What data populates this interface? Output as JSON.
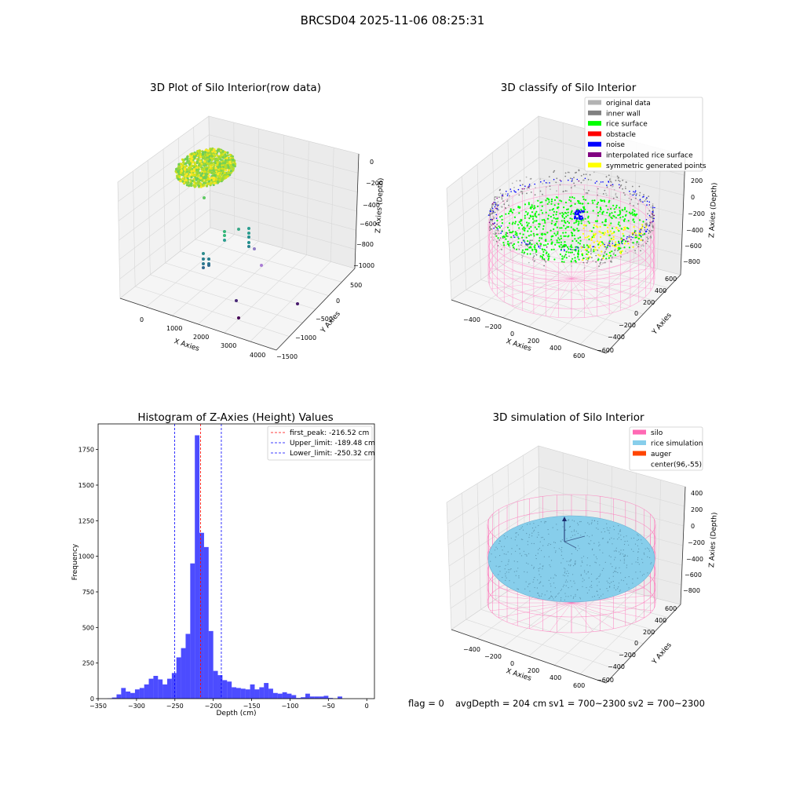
{
  "figure": {
    "suptitle": "BRCSD04 2025-11-06 08:25:31",
    "footer": {
      "flag": "flag = 0",
      "avg_depth": "avgDepth = 204 cm",
      "sv1": "sv1 = 700~2300",
      "sv2": "sv2 = 700~2300"
    }
  },
  "panels": {
    "raw": {
      "title": "3D Plot of Silo Interior(row data)",
      "xlabel": "X Axies",
      "ylabel": "Y Axies",
      "zlabel": "Z Axies (Depth)",
      "xticks": [
        "0",
        "1000",
        "2000",
        "3000",
        "4000"
      ],
      "yticks": [
        "500",
        "0",
        "−500",
        "−1000",
        "−1500"
      ],
      "zticks": [
        "0",
        "−200",
        "−400",
        "−600",
        "−800",
        "−1000"
      ]
    },
    "classify": {
      "title": "3D classify of Silo Interior",
      "xlabel": "X Axies",
      "ylabel": "Y Axies",
      "zlabel": "Z Axies (Depth)",
      "xticks": [
        "−400",
        "−200",
        "0",
        "200",
        "400",
        "600"
      ],
      "yticks": [
        "600",
        "400",
        "200",
        "0",
        "−200",
        "−400",
        "−600"
      ],
      "zticks": [
        "200",
        "0",
        "−200",
        "−400",
        "−600",
        "−800"
      ],
      "legend": [
        {
          "label": "original data",
          "color": "#b3b3b3"
        },
        {
          "label": "inner wall",
          "color": "#808080"
        },
        {
          "label": "rice surface",
          "color": "#00ff00"
        },
        {
          "label": "obstacle",
          "color": "#ff0000"
        },
        {
          "label": "noise",
          "color": "#0000ff"
        },
        {
          "label": "interpolated rice surface",
          "color": "#800080"
        },
        {
          "label": "symmetric generated points",
          "color": "#ffff00"
        }
      ]
    },
    "simulation": {
      "title": "3D simulation of Silo Interior",
      "xlabel": "X Axies",
      "ylabel": "Y Axies",
      "zlabel": "Z Axies (Depth)",
      "xticks": [
        "−400",
        "−200",
        "0",
        "200",
        "400",
        "600"
      ],
      "yticks": [
        "600",
        "400",
        "200",
        "0",
        "−200",
        "−400",
        "−600"
      ],
      "zticks": [
        "400",
        "200",
        "0",
        "−200",
        "−400",
        "−600",
        "−800"
      ],
      "legend": [
        {
          "label": "silo",
          "color": "#ff69b4"
        },
        {
          "label": "rice simulation",
          "color": "#87ceeb"
        },
        {
          "label": "auger",
          "color": "#ff4500"
        },
        {
          "label": "center(96,-55)",
          "color": "none"
        }
      ]
    }
  },
  "chart_data": [
    {
      "type": "scatter",
      "panel": "raw",
      "title": "3D Plot of Silo Interior(row data)",
      "description_colormap": "viridis",
      "xlim": [
        -600,
        4400
      ],
      "ylim": [
        -1500,
        700
      ],
      "zlim": [
        -1000,
        50
      ]
    },
    {
      "type": "scatter",
      "panel": "classify",
      "title": "3D classify of Silo Interior",
      "xlim": [
        -500,
        700
      ],
      "ylim": [
        -700,
        700
      ],
      "zlim": [
        -900,
        300
      ]
    },
    {
      "type": "bar",
      "panel": "histogram",
      "title": "Histogram of Z-Axies (Height) Values",
      "xlabel": "Depth (cm)",
      "ylabel": "Frequency",
      "xlim": [
        -350,
        10
      ],
      "ylim": [
        0,
        1930
      ],
      "xticks": [
        -350,
        -300,
        -250,
        -200,
        -150,
        -100,
        -50,
        0
      ],
      "yticks": [
        0,
        250,
        500,
        750,
        1000,
        1250,
        1500,
        1750
      ],
      "bin_start": -338,
      "bin_width": 6,
      "values": [
        2,
        8,
        30,
        75,
        50,
        40,
        65,
        75,
        100,
        140,
        160,
        135,
        100,
        140,
        180,
        290,
        355,
        455,
        950,
        1850,
        1165,
        1065,
        475,
        195,
        165,
        130,
        120,
        80,
        75,
        70,
        65,
        100,
        65,
        80,
        110,
        70,
        40,
        35,
        45,
        35,
        25,
        5,
        10,
        35,
        15,
        15,
        15,
        20,
        5,
        0,
        15,
        0
      ],
      "color": "#0000ff",
      "lines": [
        {
          "label": "first_peak: -216.52 cm",
          "x": -216.52,
          "color": "#ff0000"
        },
        {
          "label": "Upper_limit: -189.48 cm",
          "x": -189.48,
          "color": "#0000ff"
        },
        {
          "label": "Lower_limit: -250.32 cm",
          "x": -250.32,
          "color": "#0000ff"
        }
      ],
      "legend_position": "top-right"
    },
    {
      "type": "scatter",
      "panel": "simulation",
      "title": "3D simulation of Silo Interior",
      "xlim": [
        -500,
        700
      ],
      "ylim": [
        -700,
        700
      ],
      "zlim": [
        -900,
        450
      ]
    }
  ]
}
